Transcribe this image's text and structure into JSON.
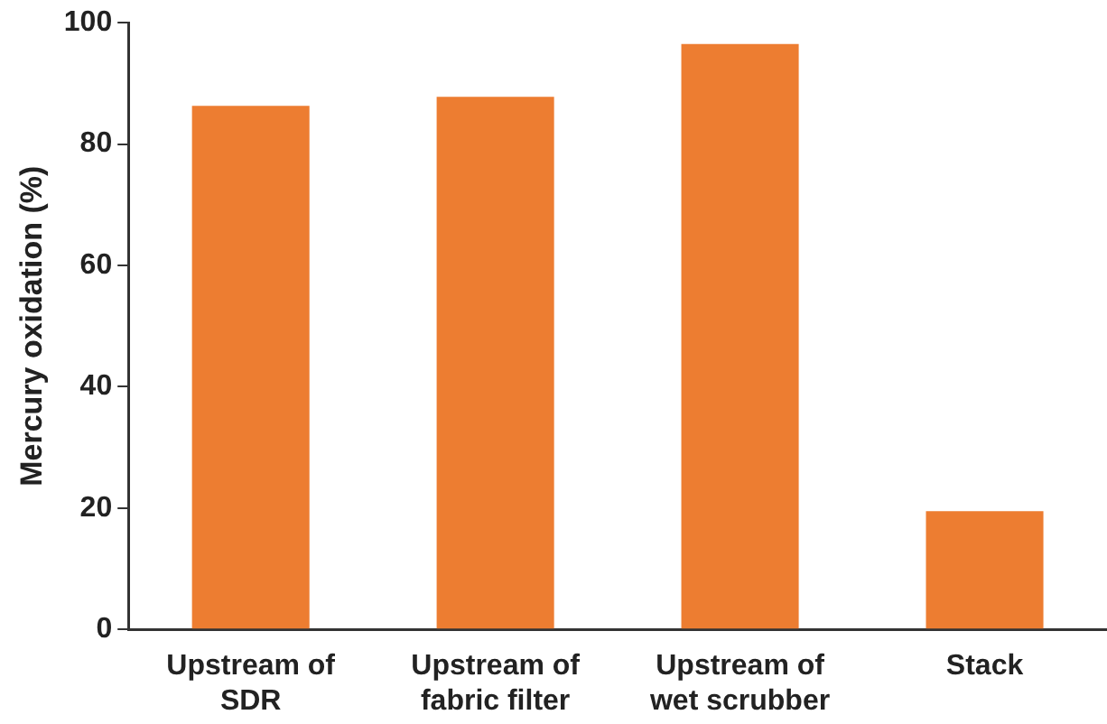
{
  "chart_data": {
    "type": "bar",
    "ylabel": "Mercury oxidation (%)",
    "categories": [
      "Upstream of SDR",
      "Upstream of fabric filter",
      "Upstream of wet scrubber",
      "Stack"
    ],
    "values": [
      86.3,
      87.8,
      96.5,
      19.5
    ],
    "color": "#ed7d31",
    "ylim": [
      0,
      100
    ],
    "yticks": [
      0,
      20,
      40,
      60,
      80,
      100
    ],
    "grid": false,
    "legend": false
  }
}
